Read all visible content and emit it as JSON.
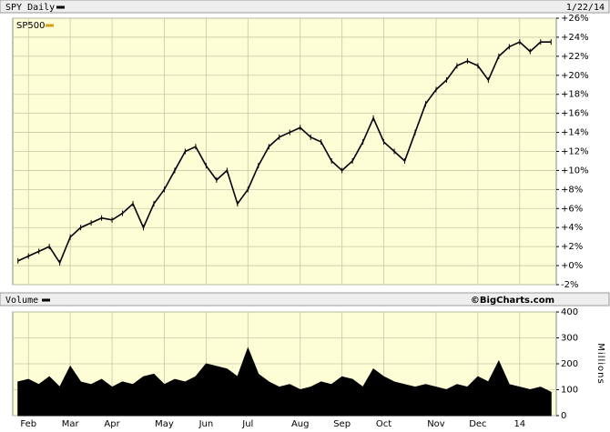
{
  "chart_data": [
    {
      "type": "line",
      "title": "SPY Daily",
      "date": "1/22/14",
      "legend": "header",
      "series": [
        {
          "name": "SPY Daily",
          "color": "#000000",
          "values": [
            0.5,
            1.0,
            1.5,
            2.0,
            0.3,
            3.0,
            4.0,
            4.5,
            5.0,
            4.8,
            5.5,
            6.5,
            4.0,
            6.5,
            8.0,
            10.0,
            12.0,
            12.5,
            10.5,
            9.0,
            10.0,
            6.5,
            8.0,
            10.5,
            12.5,
            13.5,
            14.0,
            14.5,
            13.5,
            13.0,
            11.0,
            10.0,
            11.0,
            13.0,
            15.5,
            13.0,
            12.0,
            11.0,
            14.0,
            17.0,
            18.5,
            19.5,
            21.0,
            21.5,
            21.0,
            19.5,
            22.0,
            23.0,
            23.5,
            22.5,
            23.5,
            23.5
          ]
        }
      ],
      "annotation": "SP500",
      "annotation_color": "#d4a017",
      "ylim": [
        -2,
        26
      ],
      "yticks": [
        {
          "value": -2,
          "label": "-2%"
        },
        {
          "value": 0,
          "label": "+0%"
        },
        {
          "value": 2,
          "label": "+2%"
        },
        {
          "value": 4,
          "label": "+4%"
        },
        {
          "value": 6,
          "label": "+6%"
        },
        {
          "value": 8,
          "label": "+8%"
        },
        {
          "value": 10,
          "label": "+10%"
        },
        {
          "value": 12,
          "label": "+12%"
        },
        {
          "value": 14,
          "label": "+14%"
        },
        {
          "value": 16,
          "label": "+16%"
        },
        {
          "value": 18,
          "label": "+18%"
        },
        {
          "value": 20,
          "label": "+20%"
        },
        {
          "value": 22,
          "label": "+22%"
        },
        {
          "value": 24,
          "label": "+24%"
        },
        {
          "value": 26,
          "label": "+26%"
        }
      ],
      "grid": true,
      "background": "#fdfdd6"
    },
    {
      "type": "area",
      "title": "Volume",
      "credit": "©BigCharts.com",
      "ylabel": "Millions",
      "legend": "header",
      "categories": [
        null,
        "Feb",
        null,
        null,
        null,
        "Mar",
        null,
        null,
        null,
        "Apr",
        null,
        null,
        null,
        null,
        "May",
        null,
        null,
        null,
        "Jun",
        null,
        null,
        null,
        "Jul",
        null,
        null,
        null,
        null,
        "Aug",
        null,
        null,
        null,
        "Sep",
        null,
        null,
        null,
        "Oct",
        null,
        null,
        null,
        null,
        "Nov",
        null,
        null,
        null,
        "Dec",
        null,
        null,
        null,
        "14",
        null,
        null,
        null
      ],
      "series": [
        {
          "name": "Volume",
          "color": "#000000",
          "values": [
            130,
            140,
            120,
            150,
            110,
            190,
            130,
            120,
            140,
            110,
            130,
            120,
            150,
            160,
            120,
            140,
            130,
            150,
            200,
            190,
            180,
            150,
            260,
            160,
            130,
            110,
            120,
            100,
            110,
            130,
            120,
            150,
            140,
            110,
            180,
            150,
            130,
            120,
            110,
            120,
            110,
            100,
            120,
            110,
            150,
            130,
            210,
            120,
            110,
            100,
            110,
            90
          ]
        }
      ],
      "ylim": [
        0,
        400
      ],
      "yticks": [
        0,
        100,
        200,
        300,
        400
      ],
      "grid": true,
      "background": "#fdfdd6"
    }
  ]
}
